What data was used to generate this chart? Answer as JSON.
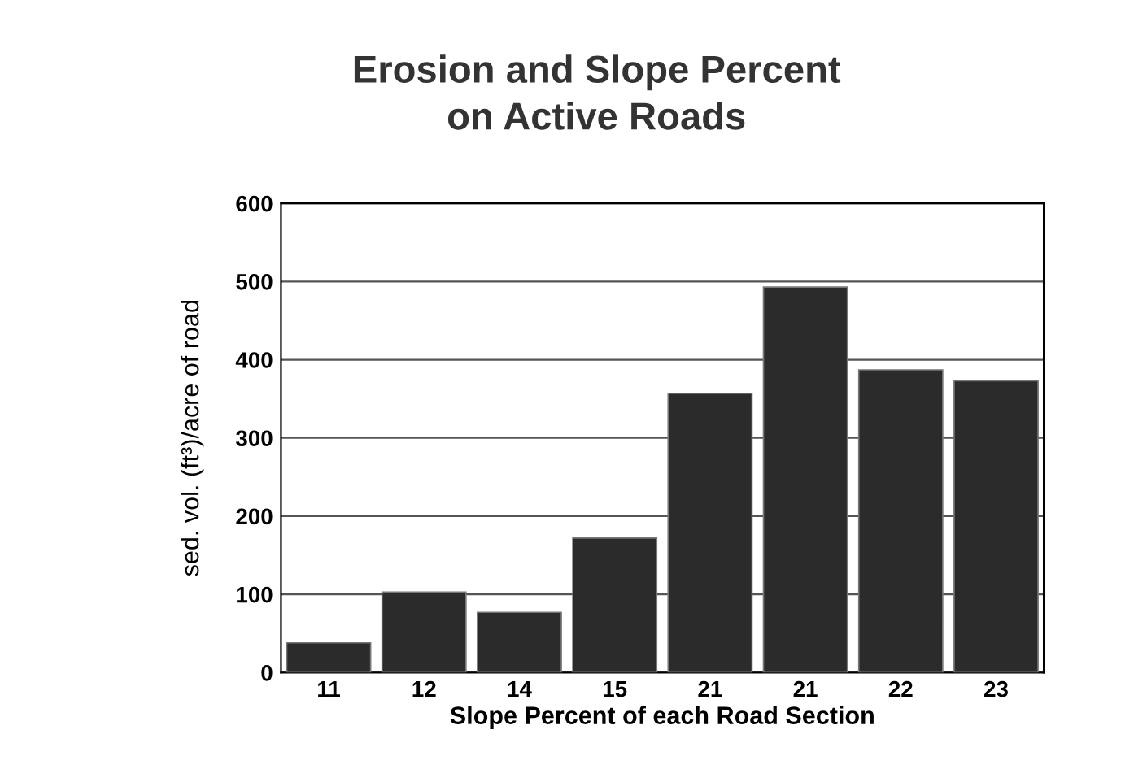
{
  "chart_data": {
    "type": "bar",
    "title": "Erosion and Slope Percent\non Active Roads",
    "xlabel": "Slope Percent of each Road Section",
    "ylabel": "sed. vol. (ft³)/acre of road",
    "categories": [
      "11",
      "12",
      "14",
      "15",
      "21",
      "21",
      "22",
      "23"
    ],
    "values": [
      38,
      103,
      77,
      172,
      357,
      493,
      387,
      373
    ],
    "color": "#2b2b2b",
    "ylim": [
      0,
      600
    ],
    "yticks": [
      0,
      100,
      200,
      300,
      400,
      500,
      600
    ],
    "grid": "y",
    "legend": false
  }
}
